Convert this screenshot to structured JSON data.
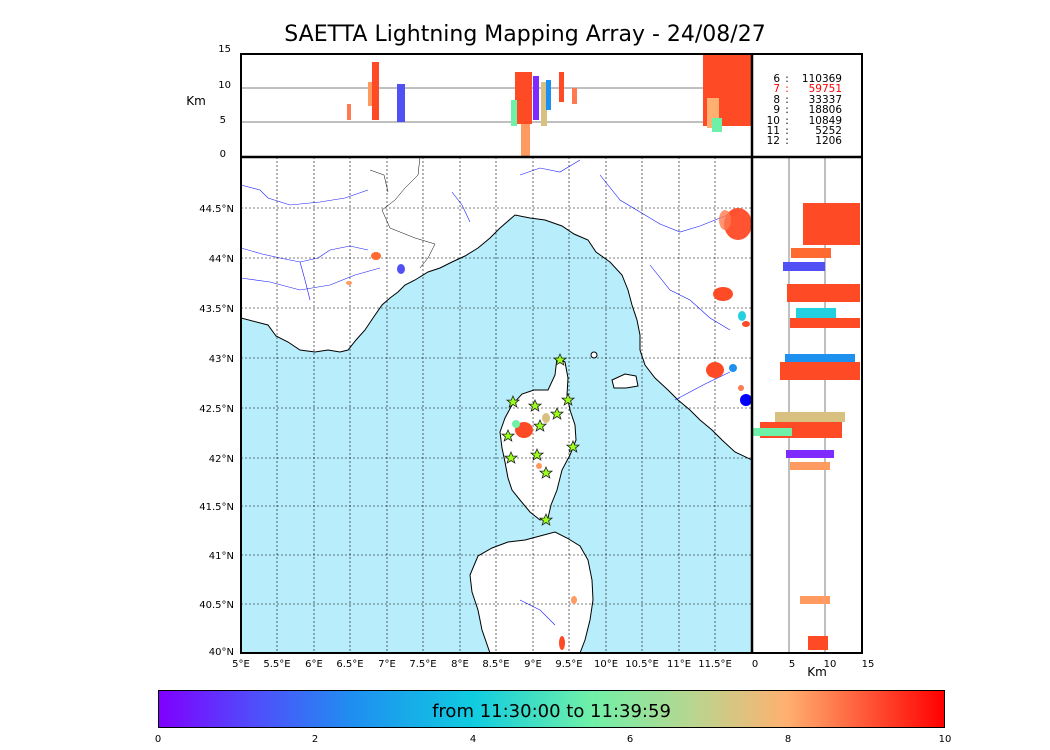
{
  "title": "SAETTA Lightning Mapping Array - 24/08/27",
  "altitude_axis": {
    "label": "Km",
    "ticks": [
      "15",
      "10",
      "5",
      "0"
    ]
  },
  "side_axis": {
    "label": "Km",
    "ticks": [
      "0",
      "5",
      "10",
      "15"
    ]
  },
  "lat_ticks": [
    "44.5°N",
    "44°N",
    "43.5°N",
    "43°N",
    "42.5°N",
    "42°N",
    "41.5°N",
    "41°N",
    "40.5°N",
    "40°N"
  ],
  "lon_ticks": [
    "5°E",
    "5.5°E",
    "6°E",
    "6.5°E",
    "7°E",
    "7.5°E",
    "8°E",
    "8.5°E",
    "9°E",
    "9.5°E",
    "10°E",
    "10.5°E",
    "11°E",
    "11.5°E"
  ],
  "legend": [
    {
      "k": "6",
      "sep": ":",
      "v": "110369",
      "highlight": false
    },
    {
      "k": "7",
      "sep": ":",
      "v": "59751",
      "highlight": true
    },
    {
      "k": "8",
      "sep": ":",
      "v": "33337",
      "highlight": false
    },
    {
      "k": "9",
      "sep": ":",
      "v": "18806",
      "highlight": false
    },
    {
      "k": "10",
      "sep": ":",
      "v": "10849",
      "highlight": false
    },
    {
      "k": "11",
      "sep": ":",
      "v": "5252",
      "highlight": false
    },
    {
      "k": "12",
      "sep": ":",
      "v": "1206",
      "highlight": false
    }
  ],
  "colorbar": {
    "text": "from 11:30:00 to 11:39:59",
    "ticks": [
      "0",
      "2",
      "4",
      "6",
      "8",
      "10"
    ]
  },
  "colors": {
    "sea": "#b8eefc",
    "river": "#1a1aff",
    "cluster_main": "#ff4a26",
    "station": "#9aff1a"
  }
}
